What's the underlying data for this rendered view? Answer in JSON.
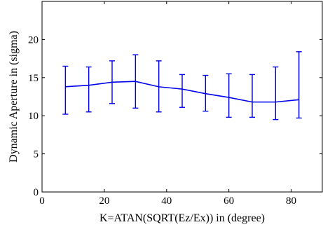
{
  "chart_data": {
    "type": "line",
    "title": "",
    "xlabel": "K=ATAN(SQRT(Ez/Ex)) in (degree)",
    "ylabel": "Dynamic Aperture in (sigma)",
    "xlim": [
      0,
      90
    ],
    "ylim": [
      0,
      25
    ],
    "xticks": [
      0,
      20,
      40,
      60,
      80
    ],
    "yticks": [
      0,
      5,
      10,
      15,
      20
    ],
    "xtick_labels": [
      "0",
      "20",
      "40",
      "60",
      "80"
    ],
    "ytick_labels": [
      "0",
      "5",
      "10",
      "15",
      "20"
    ],
    "grid": false,
    "line_color": "#0000ee",
    "series": [
      {
        "x": [
          7.5,
          15,
          22.5,
          30,
          37.5,
          45,
          52.5,
          60,
          67.5,
          75,
          82.5
        ],
        "values": [
          13.8,
          14.0,
          14.4,
          14.5,
          13.8,
          13.5,
          12.9,
          12.4,
          11.8,
          11.8,
          12.1
        ],
        "err_low": [
          10.2,
          10.5,
          11.6,
          11.0,
          10.5,
          11.1,
          10.6,
          9.8,
          9.8,
          9.5,
          9.7
        ],
        "err_high": [
          16.5,
          16.4,
          17.2,
          18.0,
          17.2,
          15.4,
          15.3,
          15.5,
          15.4,
          16.4,
          18.4
        ]
      }
    ]
  }
}
